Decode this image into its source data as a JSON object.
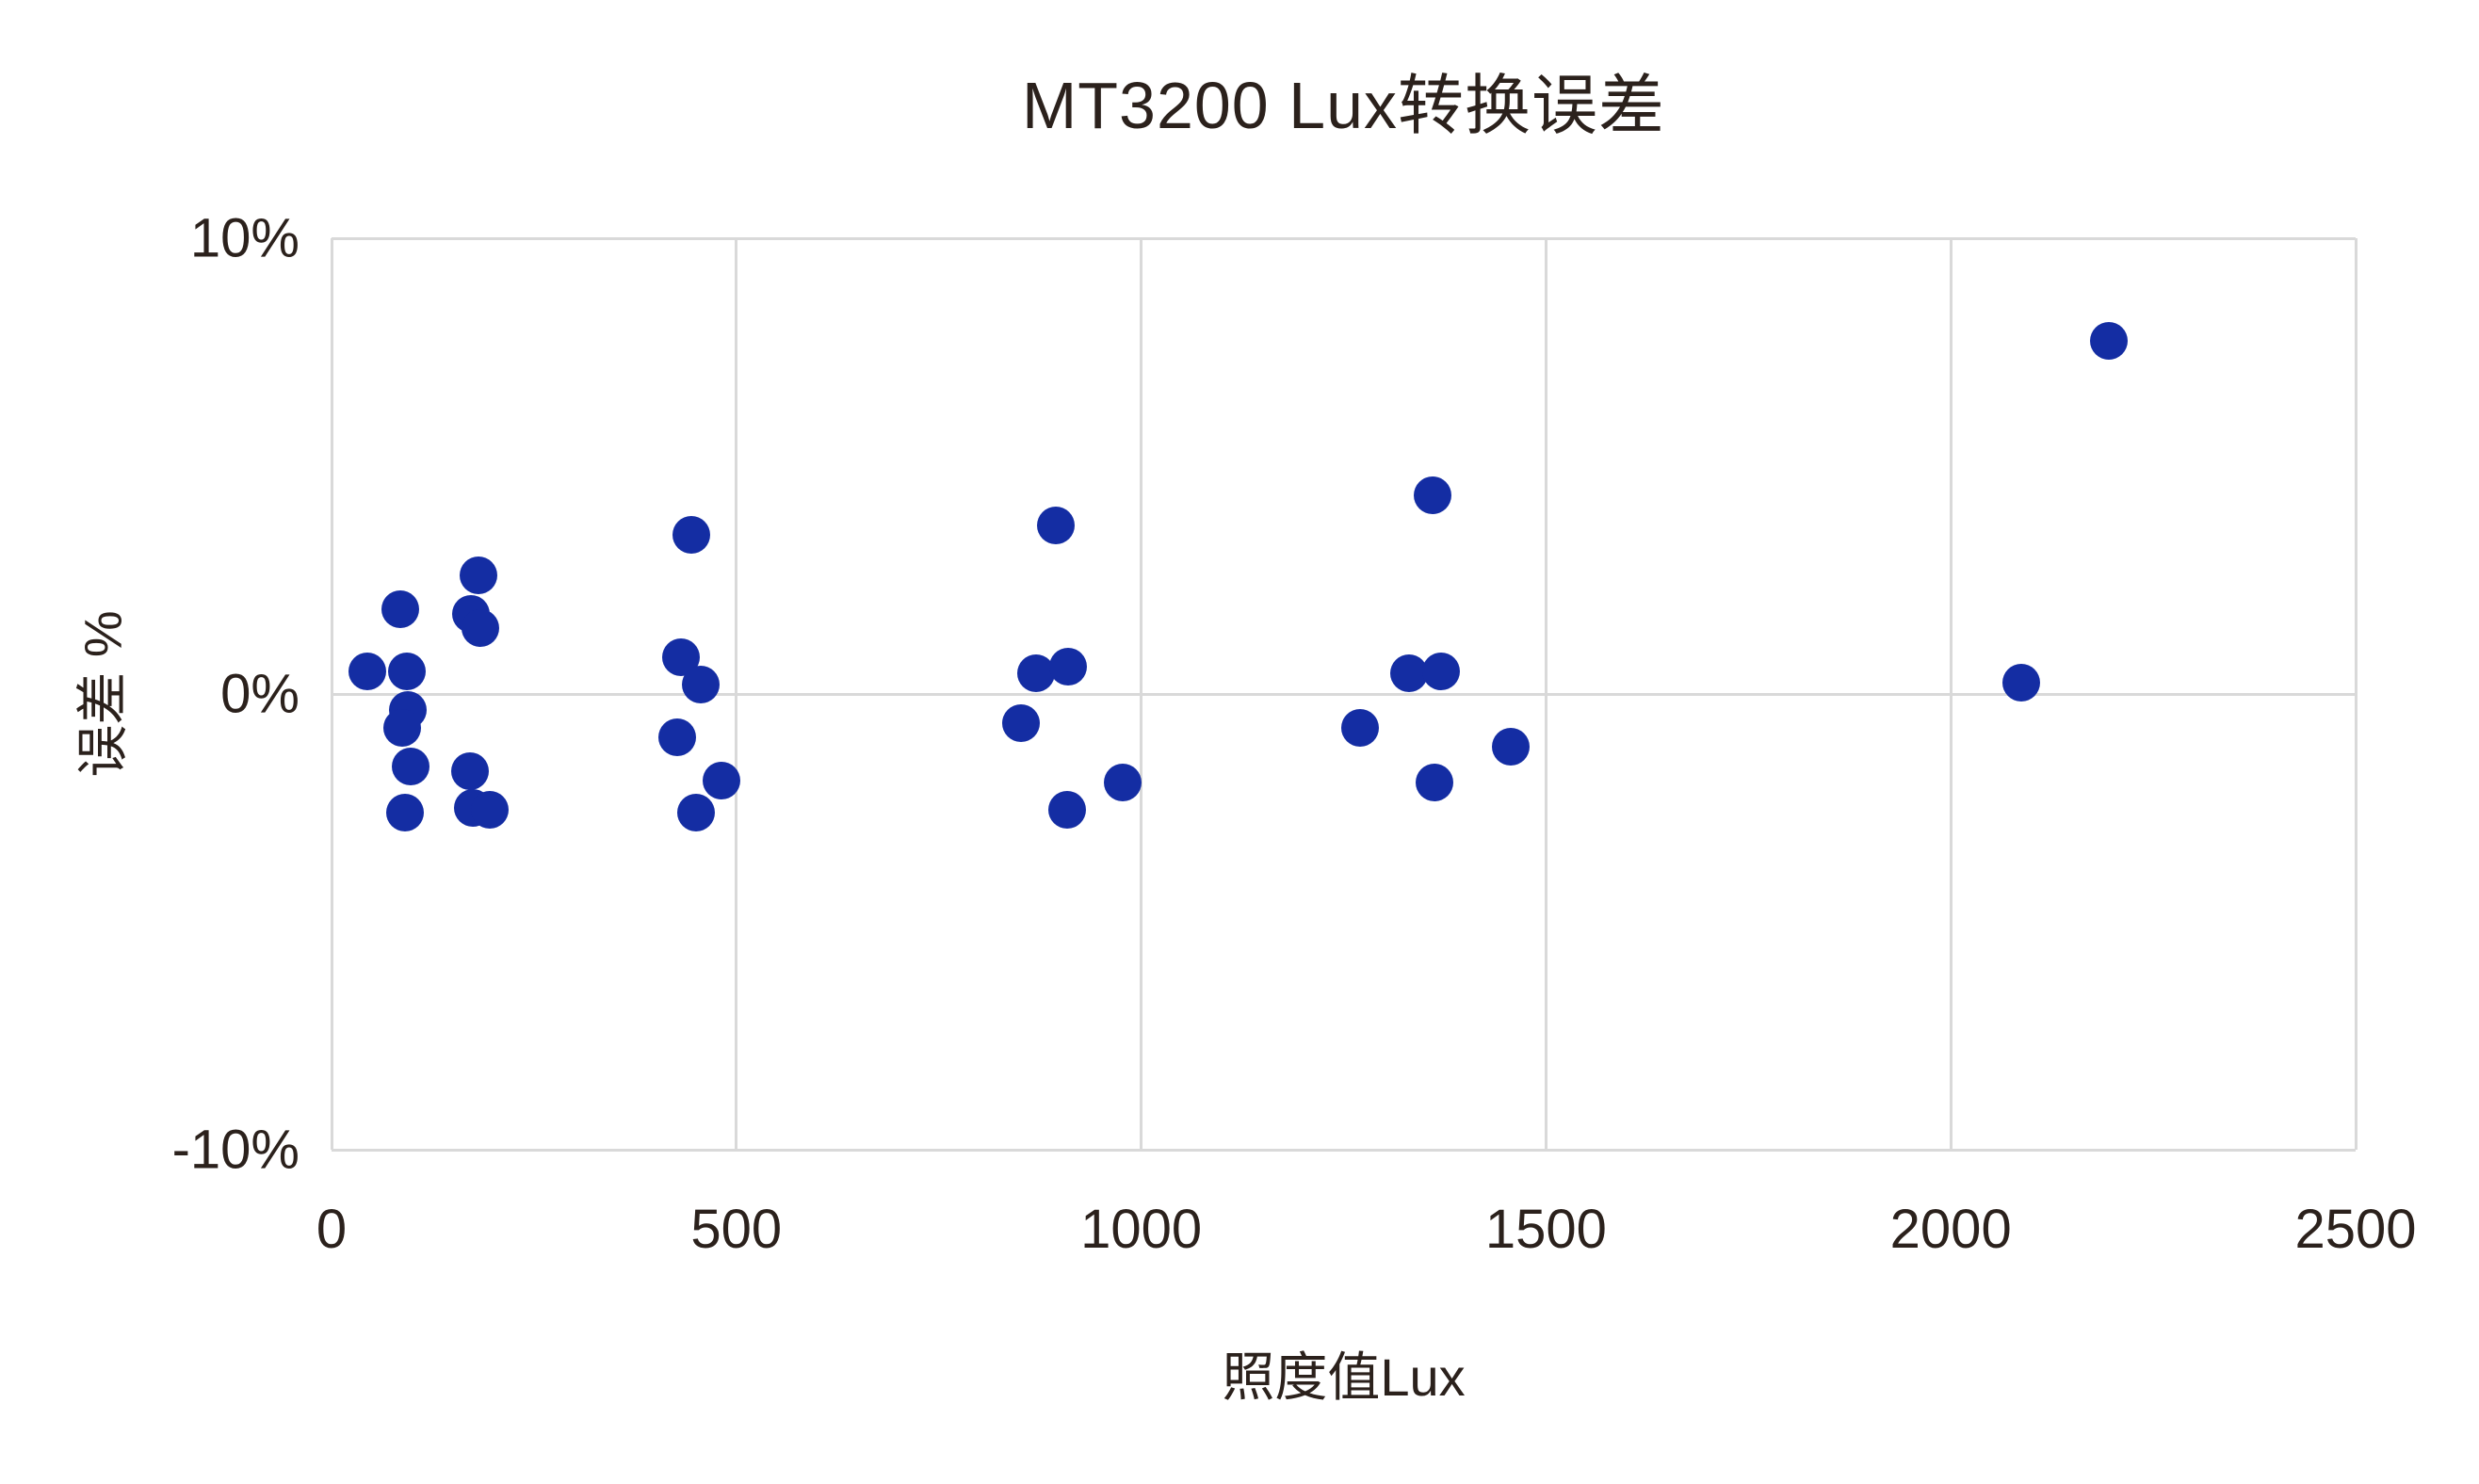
{
  "chart_data": {
    "type": "scatter",
    "title": "MT3200 Lux转换误差",
    "xlabel": "照度值Lux",
    "ylabel": "误差 %",
    "xlim": [
      0,
      2500
    ],
    "ylim": [
      -10,
      10
    ],
    "grid": {
      "vertical_values": [
        0,
        500,
        1000,
        1500,
        2000,
        2500
      ],
      "horizontal_values": [
        10,
        0,
        -10
      ]
    },
    "x_ticks": [
      {
        "value": 0,
        "label": "0"
      },
      {
        "value": 500,
        "label": "500"
      },
      {
        "value": 1000,
        "label": "1000"
      },
      {
        "value": 1500,
        "label": "1500"
      },
      {
        "value": 2000,
        "label": "2000"
      },
      {
        "value": 2500,
        "label": "2500"
      }
    ],
    "y_ticks": [
      {
        "value": 10,
        "label": "10%"
      },
      {
        "value": 0,
        "label": "0%"
      },
      {
        "value": -10,
        "label": "-10%"
      }
    ],
    "colors": {
      "marker": "#142DA3",
      "grid": "#D9D9D9",
      "text": "#2B211C"
    },
    "points": [
      {
        "x": 44,
        "y": 0.5
      },
      {
        "x": 93,
        "y": 0.5
      },
      {
        "x": 85,
        "y": 1.85
      },
      {
        "x": 94,
        "y": -0.35
      },
      {
        "x": 87,
        "y": -0.75
      },
      {
        "x": 98,
        "y": -1.6
      },
      {
        "x": 91,
        "y": -2.6
      },
      {
        "x": 182,
        "y": 2.6
      },
      {
        "x": 172,
        "y": 1.75
      },
      {
        "x": 184,
        "y": 1.45
      },
      {
        "x": 171,
        "y": -1.7
      },
      {
        "x": 174,
        "y": -2.5
      },
      {
        "x": 196,
        "y": -2.55
      },
      {
        "x": 444,
        "y": 3.5
      },
      {
        "x": 432,
        "y": 0.8
      },
      {
        "x": 456,
        "y": 0.2
      },
      {
        "x": 427,
        "y": -0.95
      },
      {
        "x": 482,
        "y": -1.9
      },
      {
        "x": 450,
        "y": -2.6
      },
      {
        "x": 895,
        "y": 3.7
      },
      {
        "x": 870,
        "y": 0.45
      },
      {
        "x": 910,
        "y": 0.6
      },
      {
        "x": 851,
        "y": -0.65
      },
      {
        "x": 977,
        "y": -1.95
      },
      {
        "x": 909,
        "y": -2.55
      },
      {
        "x": 1360,
        "y": 4.35
      },
      {
        "x": 1331,
        "y": 0.45
      },
      {
        "x": 1370,
        "y": 0.5
      },
      {
        "x": 1270,
        "y": -0.75
      },
      {
        "x": 1456,
        "y": -1.15
      },
      {
        "x": 1362,
        "y": -1.95
      },
      {
        "x": 2087,
        "y": 0.25
      },
      {
        "x": 2195,
        "y": 7.75
      }
    ]
  }
}
